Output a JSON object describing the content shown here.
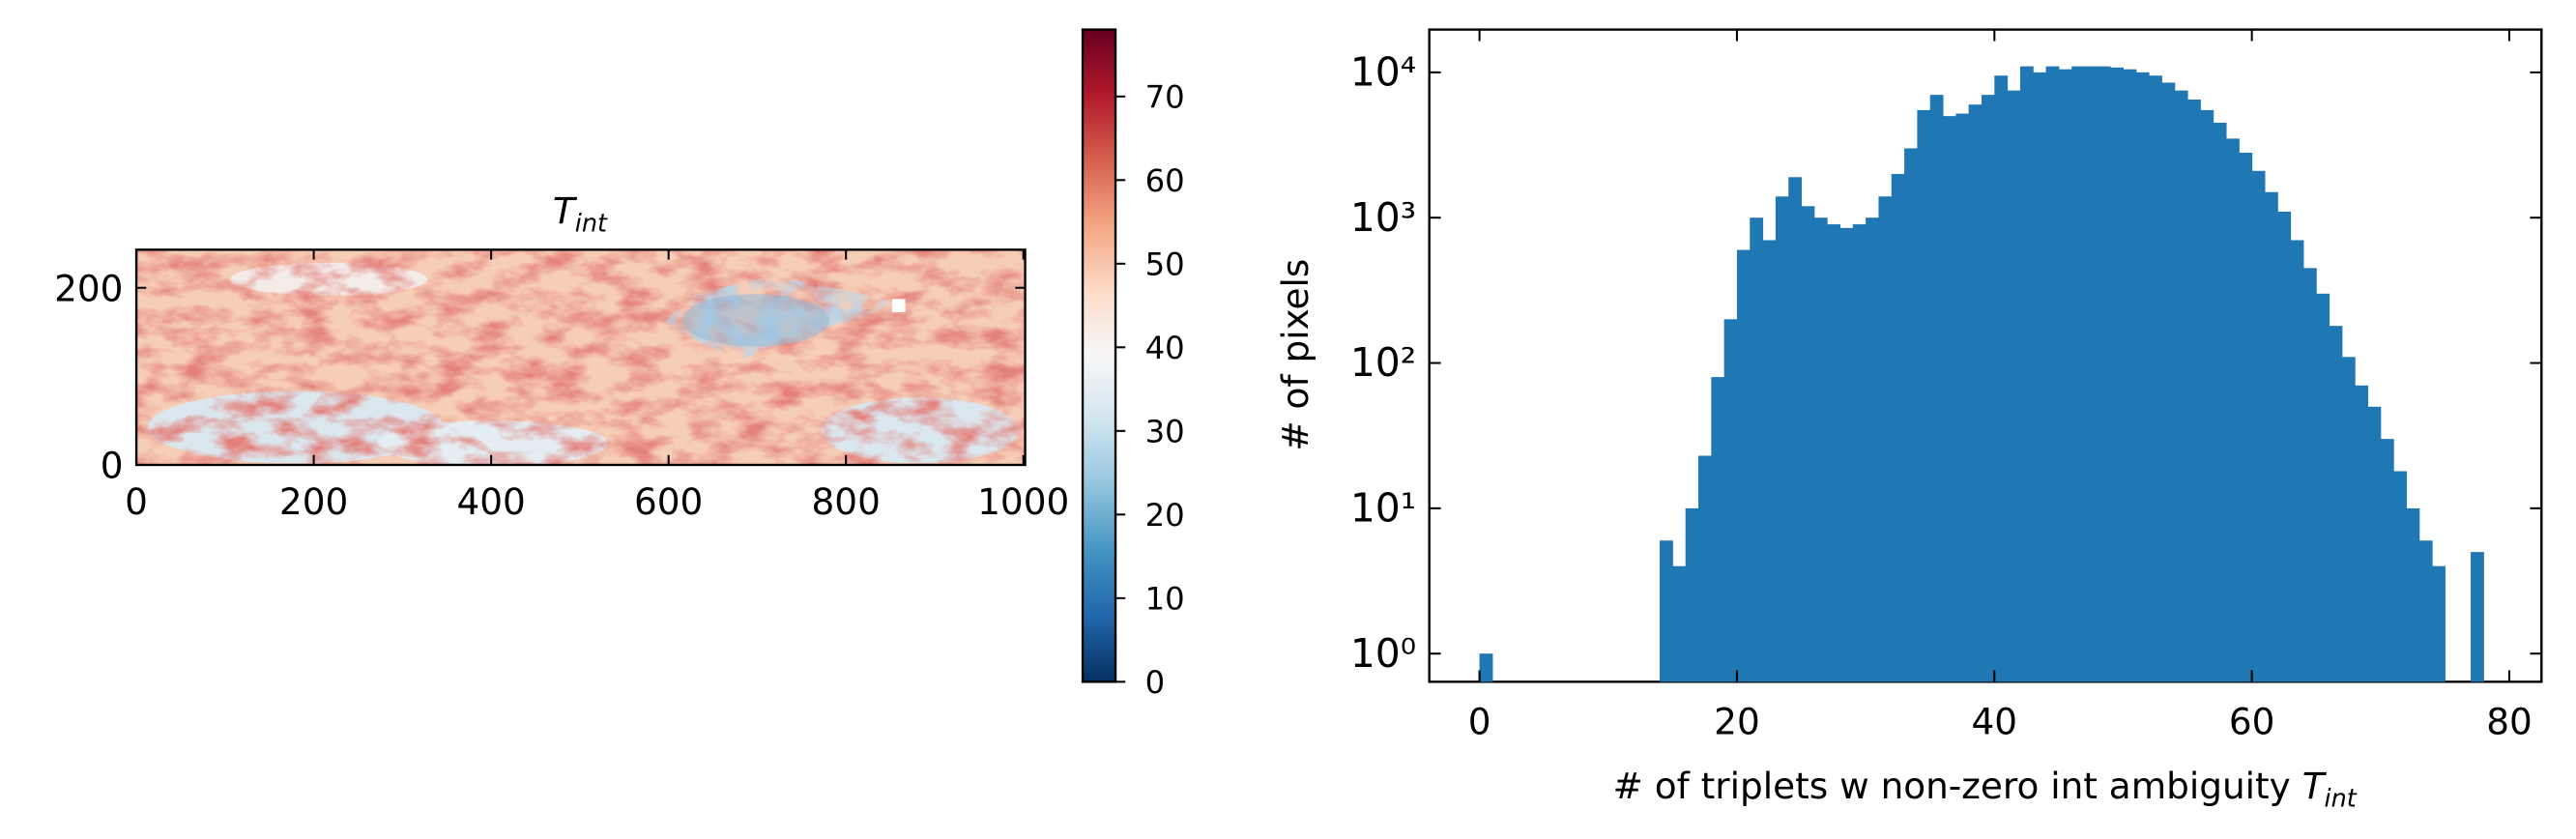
{
  "charts": [
    {
      "type": "heatmap",
      "title": {
        "main": "T",
        "sub": "int"
      },
      "xlim": [
        0,
        1002
      ],
      "xticks": [
        0,
        200,
        400,
        600,
        800,
        1000
      ],
      "ylim": [
        0,
        243
      ],
      "yticks": [
        0,
        200
      ],
      "colorbar": {
        "lim": [
          0,
          78
        ],
        "ticks": [
          0,
          10,
          20,
          30,
          40,
          50,
          60,
          70
        ]
      }
    },
    {
      "type": "histogram",
      "xlabel": {
        "main": "# of triplets w non-zero int ambiguity ",
        "var": "T",
        "sub": "int"
      },
      "ylabel": "# of pixels",
      "color": "#1f77b4",
      "log_y": true,
      "bins": [
        0,
        1,
        2,
        3,
        4,
        5,
        6,
        7,
        8,
        9,
        10,
        11,
        12,
        13,
        14,
        15,
        16,
        17,
        18,
        19,
        20,
        21,
        22,
        23,
        24,
        25,
        26,
        27,
        28,
        29,
        30,
        31,
        32,
        33,
        34,
        35,
        36,
        37,
        38,
        39,
        40,
        41,
        42,
        43,
        44,
        45,
        46,
        47,
        48,
        49,
        50,
        51,
        52,
        53,
        54,
        55,
        56,
        57,
        58,
        59,
        60,
        61,
        62,
        63,
        64,
        65,
        66,
        67,
        68,
        69,
        70,
        71,
        72,
        73,
        74,
        75,
        76,
        77,
        78
      ],
      "values": [
        1,
        0,
        0,
        0,
        0,
        0,
        0,
        0,
        0,
        0,
        0,
        0,
        0,
        0,
        6,
        4,
        10,
        23,
        80,
        200,
        600,
        1000,
        700,
        1400,
        1900,
        1200,
        1000,
        900,
        850,
        900,
        1000,
        1400,
        2000,
        3000,
        5500,
        7000,
        5000,
        5200,
        6000,
        7000,
        9500,
        7500,
        11000,
        10000,
        11000,
        10500,
        11000,
        11000,
        11000,
        10800,
        10500,
        10000,
        9500,
        8500,
        7500,
        6500,
        5500,
        4500,
        3500,
        2800,
        2100,
        1500,
        1100,
        700,
        450,
        300,
        180,
        110,
        70,
        50,
        30,
        18,
        10,
        6,
        4,
        0,
        0,
        5
      ],
      "xlim": [
        -3.9,
        82.5
      ],
      "xticks": [
        0,
        20,
        40,
        60,
        80
      ],
      "ylim": [
        0.64,
        19700
      ],
      "yticks": [
        {
          "value": 1,
          "label": "10⁰"
        },
        {
          "value": 10,
          "label": "10¹"
        },
        {
          "value": 100,
          "label": "10²"
        },
        {
          "value": 1000,
          "label": "10³"
        },
        {
          "value": 10000,
          "label": "10⁴"
        }
      ]
    }
  ]
}
